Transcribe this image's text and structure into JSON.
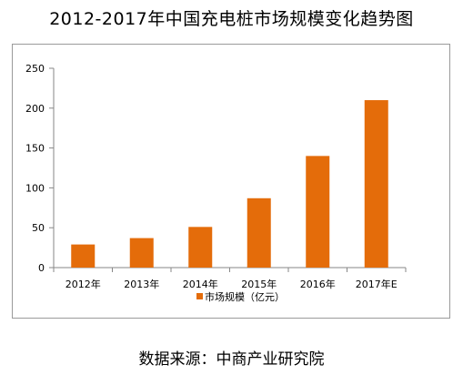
{
  "title": "2012-2017年中国充电桩市场规模变化趋势图",
  "source": "数据来源：中商产业研究院",
  "colors": {
    "bar": "#E46C0A",
    "axis": "#878787",
    "text": "#000000"
  },
  "chart_data": {
    "type": "bar",
    "categories": [
      "2012年",
      "2013年",
      "2014年",
      "2015年",
      "2016年",
      "2017年E"
    ],
    "series": [
      {
        "name": "市场规模（亿元）",
        "values": [
          29,
          37,
          51,
          87,
          140,
          210
        ]
      }
    ],
    "ylim": [
      0,
      250
    ],
    "yticks": [
      0,
      50,
      100,
      150,
      200,
      250
    ],
    "grid": false,
    "legend": "bottom-center"
  }
}
